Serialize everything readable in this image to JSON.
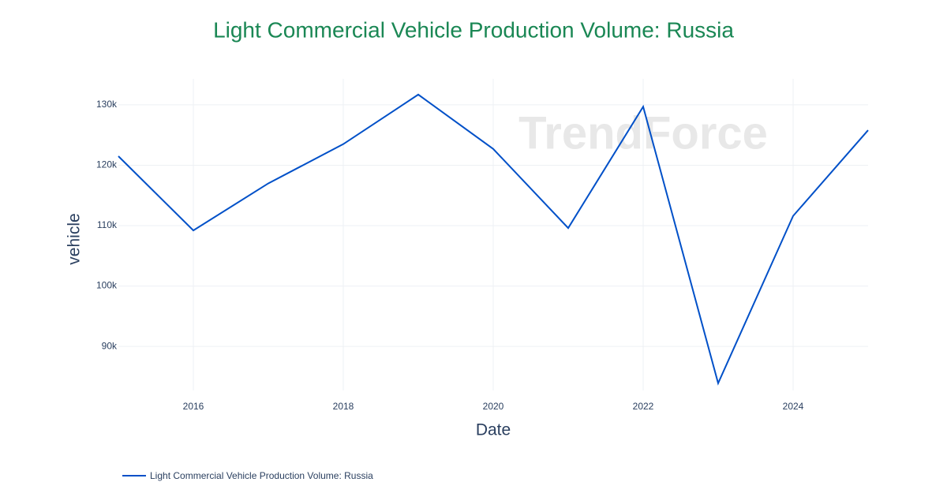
{
  "chart_data": {
    "type": "line",
    "title": "Light Commercial Vehicle Production Volume: Russia",
    "watermark": "TrendForce",
    "x_label": "Date",
    "y_label": "vehicle",
    "x": [
      2015,
      2016,
      2017,
      2018,
      2019,
      2020,
      2021,
      2022,
      2023,
      2024,
      2025
    ],
    "series": [
      {
        "name": "Light Commercial Vehicle Production Volume: Russia",
        "color": "#0050c8",
        "values": [
          121500,
          109200,
          117000,
          123500,
          131700,
          122700,
          109600,
          129700,
          83900,
          111600,
          125800
        ]
      }
    ],
    "xlim": [
      2015,
      2025
    ],
    "xticks": [
      2016,
      2018,
      2020,
      2022,
      2024
    ],
    "ylim": [
      82700,
      134300
    ],
    "yticks": [
      {
        "value": 90000,
        "label": "90k"
      },
      {
        "value": 100000,
        "label": "100k"
      },
      {
        "value": 110000,
        "label": "110k"
      },
      {
        "value": 120000,
        "label": "120k"
      },
      {
        "value": 130000,
        "label": "130k"
      }
    ],
    "grid": true,
    "title_color": "#1a8754",
    "legend": "bottom-left"
  }
}
